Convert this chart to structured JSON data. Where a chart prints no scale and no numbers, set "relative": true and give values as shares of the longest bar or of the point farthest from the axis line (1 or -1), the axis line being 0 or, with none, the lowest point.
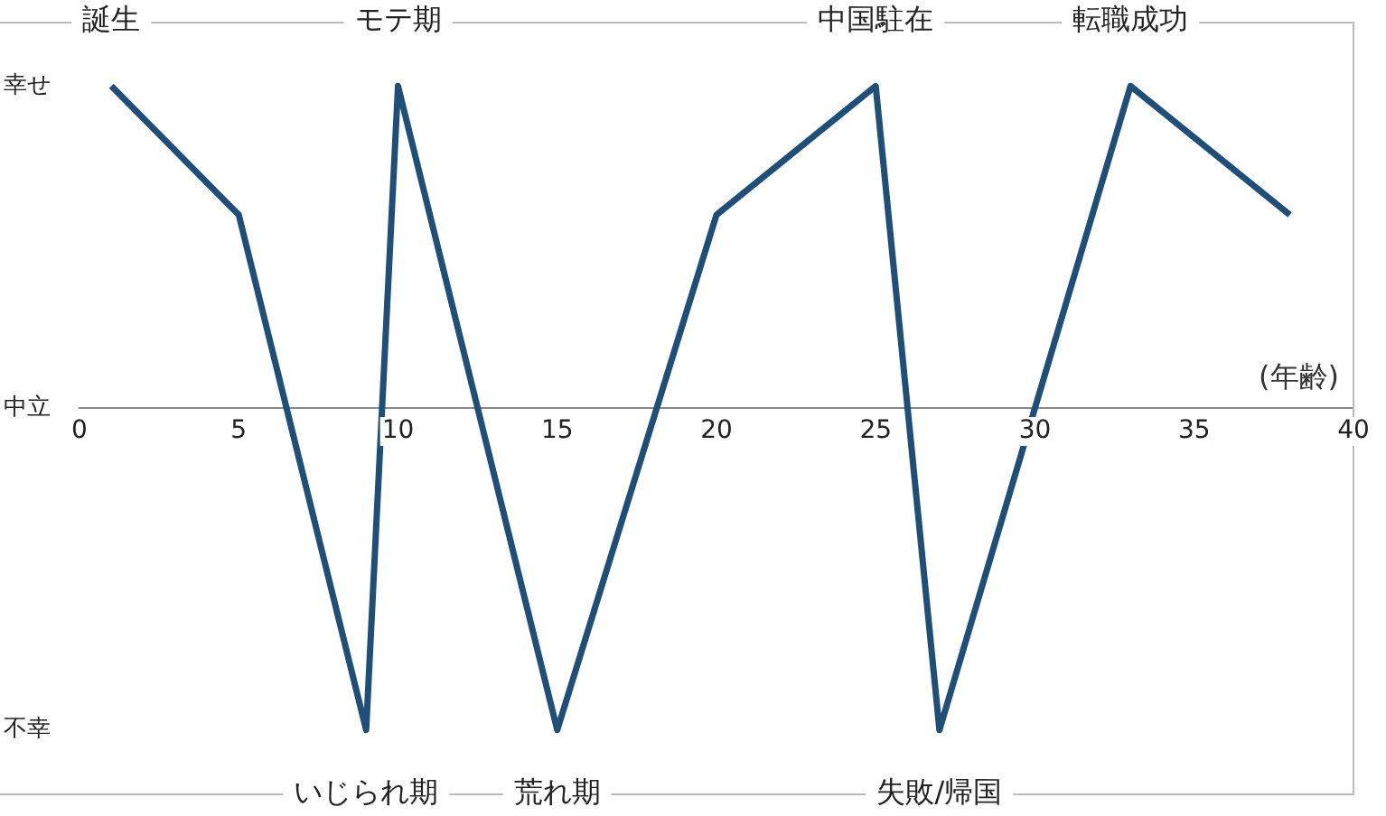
{
  "chart_data": {
    "type": "line",
    "xlabel": "(年齢)",
    "x": [
      1,
      5,
      9,
      10,
      15,
      20,
      25,
      27,
      33,
      38
    ],
    "series": [
      {
        "color": "#1f4e79",
        "values": [
          1,
          0.6,
          -1,
          1,
          -1,
          0.6,
          1,
          -1,
          1,
          0.6
        ]
      }
    ],
    "xlim": [
      0,
      40
    ],
    "xticks": [
      0,
      5,
      10,
      15,
      20,
      25,
      30,
      35,
      40
    ],
    "relative": true,
    "annotations": [
      "幸せ",
      "中立",
      "不幸",
      {
        "text": "誕生",
        "x": 1,
        "y": 1
      },
      {
        "text": "モテ期",
        "x": 10,
        "y": 1
      },
      {
        "text": "中国駐在",
        "x": 25,
        "y": 1
      },
      {
        "text": "転職成功",
        "x": 33,
        "y": 1
      },
      {
        "text": "いじられ期",
        "x": 9,
        "y": -1
      },
      {
        "text": "荒れ期",
        "x": 15,
        "y": -1
      },
      {
        "text": "失敗/帰国",
        "x": 27,
        "y": -1
      }
    ],
    "grid": false,
    "legend": false
  }
}
